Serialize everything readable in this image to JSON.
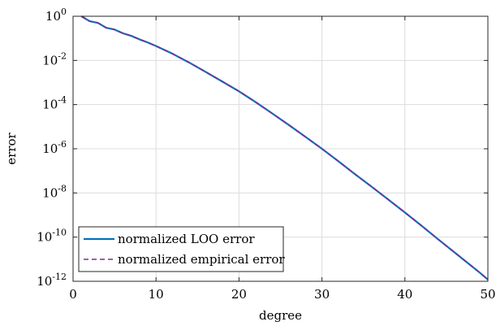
{
  "chart_data": {
    "type": "line",
    "xlabel": "degree",
    "ylabel": "error",
    "xlim": [
      0,
      50
    ],
    "ylim": [
      1e-12,
      1
    ],
    "yscale": "log",
    "grid": true,
    "xticks": [
      0,
      10,
      20,
      30,
      40,
      50
    ],
    "yticks_exponents": [
      0,
      -2,
      -4,
      -6,
      -8,
      -10,
      -12
    ],
    "ytick_base": "10",
    "legend_position": "bottom-left",
    "series": [
      {
        "name": "normalized LOO error",
        "color": "#0072BD",
        "line_style": "solid",
        "x": [
          1,
          2,
          3,
          4,
          5,
          6,
          7,
          8,
          9,
          10,
          12,
          14,
          16,
          18,
          20,
          22,
          24,
          26,
          28,
          30,
          32,
          34,
          36,
          38,
          40,
          42,
          44,
          46,
          48,
          49,
          50
        ],
        "y": [
          1.0,
          0.6,
          0.5,
          0.3,
          0.25,
          0.17,
          0.13,
          0.09,
          0.065,
          0.045,
          0.02,
          0.008,
          0.003,
          0.0011,
          0.0004,
          0.00013,
          4e-05,
          1.2e-05,
          3.5e-06,
          1e-06,
          2.7e-07,
          7e-08,
          1.9e-08,
          5e-09,
          1.3e-09,
          3.3e-10,
          8e-11,
          2e-11,
          5e-12,
          2.5e-12,
          1.2e-12
        ]
      },
      {
        "name": "normalized empirical error",
        "color": "#7E2F8E",
        "line_style": "dashed",
        "x": [
          1,
          2,
          3,
          4,
          5,
          6,
          7,
          8,
          9,
          10,
          12,
          14,
          16,
          18,
          20,
          22,
          24,
          26,
          28,
          30,
          32,
          34,
          36,
          38,
          40,
          42,
          44,
          46,
          48,
          49,
          50
        ],
        "y": [
          1.0,
          0.6,
          0.5,
          0.3,
          0.25,
          0.17,
          0.13,
          0.09,
          0.065,
          0.045,
          0.02,
          0.008,
          0.003,
          0.0011,
          0.0004,
          0.00013,
          4e-05,
          1.2e-05,
          3.5e-06,
          1e-06,
          2.7e-07,
          7e-08,
          1.9e-08,
          5e-09,
          1.3e-09,
          3.3e-10,
          8e-11,
          2e-11,
          5e-12,
          2.5e-12,
          1.2e-12
        ]
      }
    ]
  }
}
